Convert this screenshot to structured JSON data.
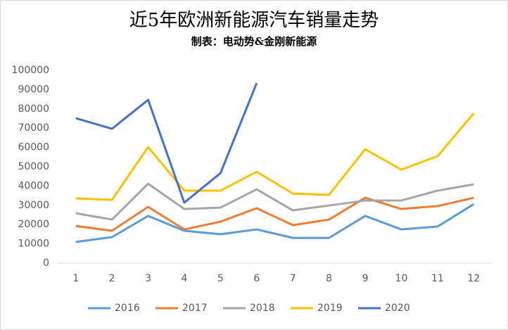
{
  "chart_data": {
    "type": "line",
    "title": "近5年欧洲新能源汽车销量走势",
    "subtitle": "制表：电动势&金刚新能源",
    "categories": [
      "1",
      "2",
      "3",
      "4",
      "5",
      "6",
      "7",
      "8",
      "9",
      "10",
      "11",
      "12"
    ],
    "series": [
      {
        "name": "2016",
        "color": "#5b9bd5",
        "values": [
          11000,
          13500,
          24500,
          16800,
          15000,
          17500,
          13100,
          13100,
          24500,
          17500,
          19000,
          30600
        ]
      },
      {
        "name": "2017",
        "color": "#ed7d31",
        "values": [
          19300,
          16800,
          29200,
          17500,
          21500,
          28500,
          19700,
          22600,
          33900,
          28100,
          29600,
          33900
        ]
      },
      {
        "name": "2018",
        "color": "#a5a5a5",
        "values": [
          25900,
          22600,
          41200,
          28100,
          28800,
          38300,
          27400,
          29900,
          32500,
          32500,
          37600,
          40900
        ]
      },
      {
        "name": "2019",
        "color": "#ffc000",
        "values": [
          33600,
          32800,
          60200,
          37600,
          37600,
          47400,
          36100,
          35400,
          59100,
          48500,
          55500,
          77700
        ]
      },
      {
        "name": "2020",
        "color": "#4472c4",
        "values": [
          75200,
          69700,
          84700,
          31400,
          46700,
          93400,
          null,
          null,
          null,
          null,
          null,
          null
        ]
      }
    ],
    "ylim": [
      0,
      100000
    ],
    "yticks": [
      0,
      10000,
      20000,
      30000,
      40000,
      50000,
      60000,
      70000,
      80000,
      90000,
      100000
    ],
    "grid": false,
    "legend": "bottom"
  }
}
